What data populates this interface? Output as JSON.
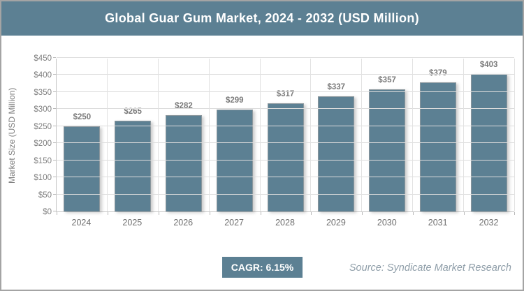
{
  "title": "Global Guar Gum Market, 2024 - 2032 (USD Million)",
  "colors": {
    "accent": "#5c8093",
    "bar": "#5c8093",
    "grid": "#dcdcdc",
    "axis": "#c6c6c6",
    "label_gray": "#7f7f7f",
    "frame_border": "#a4a4a4",
    "source_text": "#8f9ea9"
  },
  "chart_data": {
    "type": "bar",
    "title": "Global Guar Gum Market, 2024 - 2032 (USD Million)",
    "categories": [
      "2024",
      "2025",
      "2026",
      "2027",
      "2028",
      "2029",
      "2030",
      "2031",
      "2032"
    ],
    "values": [
      250,
      265,
      282,
      299,
      317,
      337,
      357,
      379,
      403
    ],
    "value_labels": [
      "$250",
      "$265",
      "$282",
      "$299",
      "$317",
      "$337",
      "$357",
      "$379",
      "$403"
    ],
    "xlabel": "",
    "ylabel": "Market Size (USD Million)",
    "ylim": [
      0,
      450
    ],
    "ytick_step": 50,
    "ytick_labels": [
      "$0",
      "$50",
      "$100",
      "$150",
      "$200",
      "$250",
      "$300",
      "$350",
      "$400",
      "$450"
    ],
    "grid": true,
    "legend": false
  },
  "footer": {
    "cagr_label": "CAGR: 6.15%",
    "source": "Source: Syndicate Market Research"
  }
}
